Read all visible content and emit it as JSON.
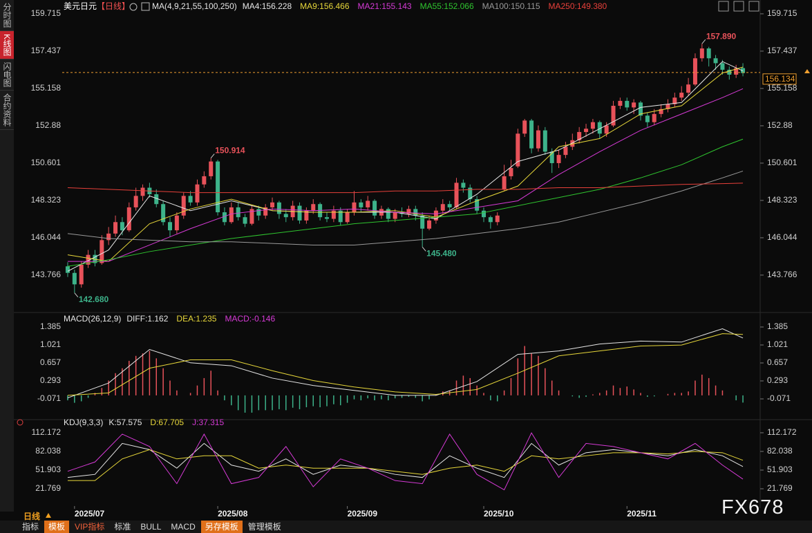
{
  "ui": {
    "sidebar": [
      "分时图",
      "K线图",
      "闪电图",
      "合约资料"
    ],
    "header": {
      "symbol": "美元日元",
      "period": "【日线】"
    },
    "footer": {
      "period": "日线",
      "tabs": [
        "指标",
        "模板",
        "VIP指标",
        "标准",
        "BULL",
        "MACD",
        "另存模板",
        "管理模板"
      ]
    },
    "watermark": "FX678"
  },
  "chart_data": [
    {
      "type": "candlestick",
      "title": "MA(4,9,21,55,100,250)",
      "xlim": [
        -0.3,
        99.3
      ],
      "ylim": [
        141.99,
        160.22
      ],
      "yticks": [
        159.715,
        157.437,
        155.158,
        152.88,
        150.601,
        148.323,
        146.044,
        143.766
      ],
      "up_color": "#e8525a",
      "down_color": "#3db38a",
      "open": [
        144.3,
        143.9,
        143.2,
        144.4,
        145.0,
        144.5,
        145.9,
        146.3,
        147.0,
        146.5,
        147.9,
        148.6,
        149.1,
        148.7,
        148.1,
        147.0,
        146.5,
        147.4,
        148.6,
        148.2,
        149.3,
        149.8,
        150.7,
        147.6,
        147.0,
        147.9,
        147.3,
        146.9,
        147.8,
        147.4,
        147.9,
        148.2,
        147.5,
        147.3,
        148.0,
        147.1,
        147.7,
        148.1,
        147.3,
        147.2,
        147.7,
        147.0,
        147.6,
        148.2,
        147.9,
        148.3,
        147.4,
        147.8,
        147.2,
        147.6,
        147.5,
        147.8,
        147.4,
        146.6,
        147.1,
        147.7,
        148.1,
        147.9,
        149.4,
        149.1,
        148.4,
        147.7,
        147.3,
        147.0,
        149.0,
        149.8,
        150.4,
        152.4,
        153.2,
        151.5,
        152.6,
        151.3,
        150.6,
        151.1,
        151.6,
        152.0,
        152.5,
        152.7,
        153.1,
        152.4,
        152.9,
        154.1,
        154.4,
        154.0,
        154.3,
        153.5,
        153.1,
        153.6,
        153.9,
        154.2,
        154.6,
        154.9,
        155.4,
        157.0,
        157.6,
        157.0,
        156.7,
        156.3,
        156.0,
        156.4
      ],
      "high": [
        144.55,
        144.1,
        144.6,
        145.3,
        145.3,
        146.2,
        146.7,
        147.4,
        147.3,
        148.2,
        149.1,
        149.3,
        149.4,
        149.0,
        148.3,
        147.3,
        147.6,
        148.8,
        148.9,
        149.6,
        150.1,
        150.914,
        150.8,
        147.9,
        148.2,
        148.2,
        147.5,
        148.0,
        148.0,
        148.1,
        148.5,
        148.3,
        147.8,
        148.3,
        148.2,
        147.9,
        148.4,
        148.2,
        147.6,
        148.0,
        147.9,
        147.8,
        148.9,
        148.4,
        148.6,
        148.4,
        148.0,
        147.9,
        147.8,
        147.9,
        148.0,
        148.0,
        147.6,
        147.4,
        147.9,
        148.4,
        148.3,
        149.7,
        149.6,
        149.3,
        148.6,
        147.9,
        147.4,
        147.6,
        150.5,
        150.8,
        152.7,
        153.3,
        153.3,
        152.9,
        152.8,
        151.5,
        151.4,
        151.9,
        152.4,
        152.8,
        153.0,
        153.3,
        153.2,
        153.1,
        154.4,
        154.6,
        154.6,
        154.5,
        154.4,
        153.7,
        153.9,
        154.2,
        154.5,
        154.9,
        155.3,
        155.8,
        157.3,
        157.89,
        157.7,
        157.2,
        156.9,
        156.5,
        156.6,
        156.7
      ],
      "low": [
        143.65,
        142.68,
        143.0,
        144.2,
        144.3,
        144.4,
        145.6,
        146.1,
        146.2,
        146.4,
        147.7,
        148.3,
        148.5,
        147.9,
        146.8,
        146.1,
        146.3,
        147.2,
        148.0,
        148.0,
        149.1,
        149.6,
        147.4,
        146.8,
        146.9,
        147.1,
        146.7,
        146.8,
        147.1,
        147.2,
        147.7,
        147.2,
        147.0,
        147.1,
        146.9,
        146.9,
        147.5,
        147.1,
        147.0,
        147.0,
        146.8,
        146.9,
        147.4,
        147.6,
        147.7,
        147.2,
        147.2,
        147.0,
        147.0,
        147.3,
        147.3,
        147.1,
        145.48,
        146.5,
        146.9,
        147.5,
        147.7,
        147.8,
        148.8,
        148.2,
        147.5,
        147.0,
        146.6,
        146.8,
        148.9,
        149.6,
        150.3,
        152.2,
        151.2,
        151.3,
        151.1,
        150.0,
        150.3,
        150.9,
        151.4,
        151.8,
        152.2,
        152.4,
        152.1,
        152.2,
        152.8,
        153.9,
        153.8,
        153.6,
        153.2,
        152.8,
        152.9,
        153.4,
        153.7,
        154.0,
        154.4,
        154.7,
        155.3,
        156.8,
        156.5,
        156.3,
        156.0,
        155.7,
        155.8,
        155.9
      ],
      "close": [
        143.9,
        143.2,
        144.4,
        145.0,
        144.5,
        145.9,
        146.3,
        147.0,
        146.5,
        147.9,
        148.6,
        149.1,
        148.7,
        148.1,
        147.0,
        146.5,
        147.4,
        148.6,
        148.2,
        149.3,
        149.8,
        150.7,
        147.6,
        147.0,
        147.9,
        147.3,
        146.9,
        147.8,
        147.4,
        147.9,
        148.2,
        147.5,
        147.3,
        148.0,
        147.1,
        147.7,
        148.1,
        147.3,
        147.2,
        147.7,
        147.0,
        147.6,
        148.2,
        147.9,
        148.3,
        147.4,
        147.8,
        147.2,
        147.6,
        147.5,
        147.8,
        147.4,
        146.6,
        147.1,
        147.7,
        148.1,
        147.9,
        149.4,
        149.1,
        148.4,
        147.7,
        147.3,
        147.0,
        147.4,
        149.8,
        150.3,
        152.4,
        153.2,
        151.5,
        152.6,
        151.3,
        150.6,
        151.1,
        151.6,
        152.0,
        152.5,
        152.7,
        153.1,
        152.4,
        152.9,
        154.1,
        154.4,
        154.0,
        154.3,
        153.5,
        153.1,
        153.6,
        153.9,
        154.2,
        154.6,
        154.9,
        155.4,
        157.0,
        157.6,
        157.0,
        156.7,
        156.3,
        156.0,
        156.4,
        156.1
      ],
      "series": [
        {
          "name": "MA4:156.228",
          "color": "#e6e6e6",
          "x": [
            0,
            6,
            12,
            18,
            24,
            30,
            36,
            42,
            48,
            54,
            60,
            66,
            72,
            78,
            84,
            90,
            96,
            99
          ],
          "values": [
            144.0,
            145.3,
            148.6,
            147.7,
            148.3,
            147.7,
            147.6,
            147.6,
            147.6,
            147.2,
            148.7,
            150.7,
            151.4,
            152.7,
            154.0,
            154.3,
            156.8,
            156.228
          ]
        },
        {
          "name": "MA9:156.466",
          "color": "#e8d83a",
          "x": [
            0,
            6,
            12,
            18,
            24,
            30,
            36,
            42,
            48,
            54,
            60,
            66,
            72,
            78,
            84,
            90,
            96,
            99
          ],
          "values": [
            145.0,
            144.6,
            146.9,
            147.8,
            148.4,
            147.7,
            147.6,
            147.6,
            147.7,
            147.3,
            148.3,
            149.2,
            151.6,
            152.1,
            153.6,
            154.1,
            156.1,
            156.466
          ]
        },
        {
          "name": "MA21:155.143",
          "color": "#d63ad6",
          "x": [
            0,
            6,
            12,
            18,
            24,
            30,
            36,
            42,
            48,
            54,
            60,
            66,
            72,
            78,
            84,
            90,
            96,
            99
          ],
          "values": [
            144.6,
            144.6,
            145.6,
            146.6,
            147.5,
            147.8,
            147.7,
            147.8,
            147.6,
            147.5,
            147.9,
            148.3,
            149.9,
            151.3,
            152.6,
            153.6,
            154.6,
            155.143
          ]
        },
        {
          "name": "MA55:152.066",
          "color": "#2fc52f",
          "x": [
            0,
            6,
            12,
            18,
            24,
            30,
            36,
            42,
            48,
            54,
            60,
            66,
            72,
            78,
            84,
            90,
            96,
            99
          ],
          "values": [
            144.3,
            144.7,
            145.2,
            145.6,
            146.0,
            146.3,
            146.6,
            146.9,
            147.1,
            147.3,
            147.5,
            148.0,
            148.5,
            149.0,
            149.7,
            150.5,
            151.6,
            152.066
          ]
        },
        {
          "name": "MA100:150.115",
          "color": "#9a9a9a",
          "x": [
            0,
            6,
            12,
            18,
            24,
            30,
            36,
            42,
            48,
            54,
            60,
            66,
            72,
            78,
            84,
            90,
            96,
            99
          ],
          "values": [
            146.3,
            146.0,
            145.9,
            145.8,
            145.8,
            145.7,
            145.6,
            145.6,
            145.8,
            146.0,
            146.3,
            146.6,
            147.0,
            147.6,
            148.2,
            148.9,
            149.7,
            150.115
          ]
        },
        {
          "name": "MA250:149.380",
          "color": "#e8403a",
          "x": [
            0,
            6,
            12,
            18,
            24,
            30,
            36,
            42,
            48,
            54,
            60,
            66,
            72,
            78,
            84,
            90,
            96,
            99
          ],
          "values": [
            149.1,
            149.0,
            148.9,
            148.8,
            148.8,
            148.8,
            148.8,
            148.8,
            148.9,
            148.9,
            149.0,
            149.0,
            149.1,
            149.1,
            149.2,
            149.3,
            149.35,
            149.38
          ]
        }
      ],
      "annotations": [
        {
          "label": "157.890",
          "value": 157.89,
          "color": "#e8525a"
        },
        {
          "label": "150.914",
          "value": 150.914,
          "color": "#e8525a"
        },
        {
          "label": "145.480",
          "value": 145.48,
          "color": "#3db38a"
        },
        {
          "label": "142.680",
          "value": 142.68,
          "color": "#3db38a"
        }
      ],
      "last_price": {
        "value": 156.134,
        "label": "156.134",
        "color": "#f0a030"
      }
    },
    {
      "type": "macd",
      "title": "MACD(26,12,9)",
      "xlim": [
        -0.3,
        99.3
      ],
      "ylim": [
        -0.463,
        1.539
      ],
      "yticks": [
        1.385,
        1.021,
        0.657,
        0.293,
        -0.071
      ],
      "series": [
        {
          "name": "DIFF:1.162",
          "color": "#e6e6e6",
          "x": [
            0,
            6,
            12,
            18,
            24,
            30,
            36,
            42,
            48,
            54,
            60,
            66,
            72,
            78,
            84,
            90,
            96,
            99
          ],
          "values": [
            -0.05,
            0.25,
            0.93,
            0.66,
            0.6,
            0.35,
            0.2,
            0.1,
            0.0,
            0.0,
            0.28,
            0.83,
            0.9,
            1.04,
            1.1,
            1.08,
            1.35,
            1.162
          ]
        },
        {
          "name": "DEA:1.235",
          "color": "#e8d83a",
          "x": [
            0,
            6,
            12,
            18,
            24,
            30,
            36,
            42,
            48,
            54,
            60,
            66,
            72,
            78,
            84,
            90,
            96,
            99
          ],
          "values": [
            0.0,
            0.05,
            0.55,
            0.72,
            0.72,
            0.5,
            0.3,
            0.17,
            0.07,
            0.02,
            0.12,
            0.45,
            0.8,
            0.9,
            1.0,
            1.02,
            1.25,
            1.235
          ]
        },
        {
          "name": "MACD:-0.146",
          "color": "#e8525a",
          "negative_color": "#3db38a",
          "legend_color": "#d63ad6",
          "values": [
            -0.1,
            -0.15,
            -0.12,
            -0.05,
            0.05,
            0.15,
            0.3,
            0.45,
            0.55,
            0.7,
            0.8,
            0.85,
            0.9,
            0.75,
            0.55,
            0.3,
            0.1,
            0.0,
            0.05,
            0.2,
            0.35,
            0.5,
            0.1,
            -0.1,
            -0.2,
            -0.3,
            -0.35,
            -0.35,
            -0.3,
            -0.3,
            -0.3,
            -0.28,
            -0.3,
            -0.25,
            -0.28,
            -0.24,
            -0.22,
            -0.24,
            -0.22,
            -0.18,
            -0.2,
            -0.15,
            -0.08,
            -0.1,
            -0.06,
            -0.1,
            -0.08,
            -0.1,
            -0.06,
            -0.05,
            -0.03,
            -0.05,
            -0.12,
            -0.08,
            0.02,
            0.08,
            0.1,
            0.3,
            0.4,
            0.35,
            0.2,
            0.05,
            -0.1,
            -0.12,
            0.1,
            0.35,
            0.75,
            1.0,
            0.85,
            0.8,
            0.55,
            0.3,
            0.1,
            0.0,
            -0.02,
            -0.05,
            -0.03,
            0.02,
            0.05,
            0.1,
            0.2,
            0.15,
            0.18,
            0.12,
            0.05,
            -0.03,
            -0.02,
            0.0,
            0.03,
            0.05,
            0.05,
            0.08,
            0.3,
            0.42,
            0.35,
            0.2,
            0.1,
            0.0,
            -0.1,
            -0.146
          ]
        }
      ]
    },
    {
      "type": "line",
      "title": "KDJ(9,3,3)",
      "xlim": [
        -0.3,
        99.3
      ],
      "ylim": [
        -6.13,
        127.8
      ],
      "yticks": [
        112.172,
        82.038,
        51.903,
        21.769
      ],
      "xticks": [
        {
          "value": 1,
          "label": "2025/07"
        },
        {
          "value": 22,
          "label": "2025/08"
        },
        {
          "value": 41,
          "label": "2025/09"
        },
        {
          "value": 61,
          "label": "2025/10"
        },
        {
          "value": 82,
          "label": "2025/11"
        }
      ],
      "series": [
        {
          "name": "K:57.575",
          "color": "#e6e6e6",
          "x": [
            0,
            4,
            8,
            12,
            16,
            20,
            24,
            28,
            32,
            36,
            40,
            44,
            48,
            52,
            56,
            60,
            64,
            68,
            72,
            76,
            80,
            84,
            88,
            92,
            96,
            99
          ],
          "values": [
            40,
            45,
            95,
            85,
            55,
            95,
            60,
            50,
            70,
            45,
            60,
            55,
            45,
            40,
            75,
            55,
            40,
            95,
            60,
            80,
            85,
            80,
            75,
            85,
            75,
            57.575
          ]
        },
        {
          "name": "D:67.705",
          "color": "#e8d83a",
          "x": [
            0,
            4,
            8,
            12,
            16,
            20,
            24,
            28,
            32,
            36,
            40,
            44,
            48,
            52,
            56,
            60,
            64,
            68,
            72,
            76,
            80,
            84,
            88,
            92,
            96,
            99
          ],
          "values": [
            35,
            35,
            70,
            85,
            70,
            75,
            75,
            55,
            60,
            55,
            55,
            55,
            50,
            45,
            55,
            60,
            50,
            75,
            70,
            75,
            80,
            80,
            78,
            82,
            80,
            67.705
          ]
        },
        {
          "name": "J:37.315",
          "color": "#d63ad6",
          "x": [
            0,
            4,
            8,
            12,
            16,
            20,
            24,
            28,
            32,
            36,
            40,
            44,
            48,
            52,
            56,
            60,
            64,
            68,
            72,
            76,
            80,
            84,
            88,
            92,
            96,
            99
          ],
          "values": [
            50,
            65,
            110,
            90,
            30,
            110,
            30,
            40,
            90,
            25,
            70,
            55,
            35,
            30,
            110,
            45,
            20,
            112,
            40,
            95,
            90,
            80,
            70,
            95,
            60,
            37.315
          ]
        }
      ]
    }
  ]
}
